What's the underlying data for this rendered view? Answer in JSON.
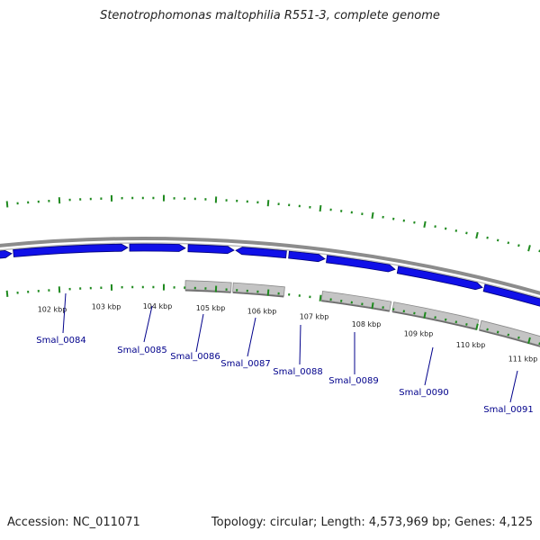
{
  "title": "Stenotrophomonas maltophilia R551-3, complete genome",
  "footer": {
    "accession": "Accession: NC_011071",
    "summary": "Topology: circular; Length: 4,573,969 bp; Genes: 4,125"
  },
  "colors": {
    "forward_gene": "#1010e8",
    "reverse_gene": "#c4c4c4",
    "backbone": "#8c8c8c",
    "ticks": "#1f8a1f",
    "gene_label": "#00008b"
  },
  "scale_labels": [
    "102 kbp",
    "103 kbp",
    "104 kbp",
    "105 kbp",
    "106 kbp",
    "107 kbp",
    "108 kbp",
    "109 kbp",
    "110 kbp",
    "111 kbp"
  ],
  "genes": [
    {
      "label": "Smal_0084"
    },
    {
      "label": "Smal_0085"
    },
    {
      "label": "Smal_0086"
    },
    {
      "label": "Smal_0087"
    },
    {
      "label": "Smal_0088"
    },
    {
      "label": "Smal_0089"
    },
    {
      "label": "Smal_0090"
    },
    {
      "label": "Smal_0091"
    }
  ]
}
